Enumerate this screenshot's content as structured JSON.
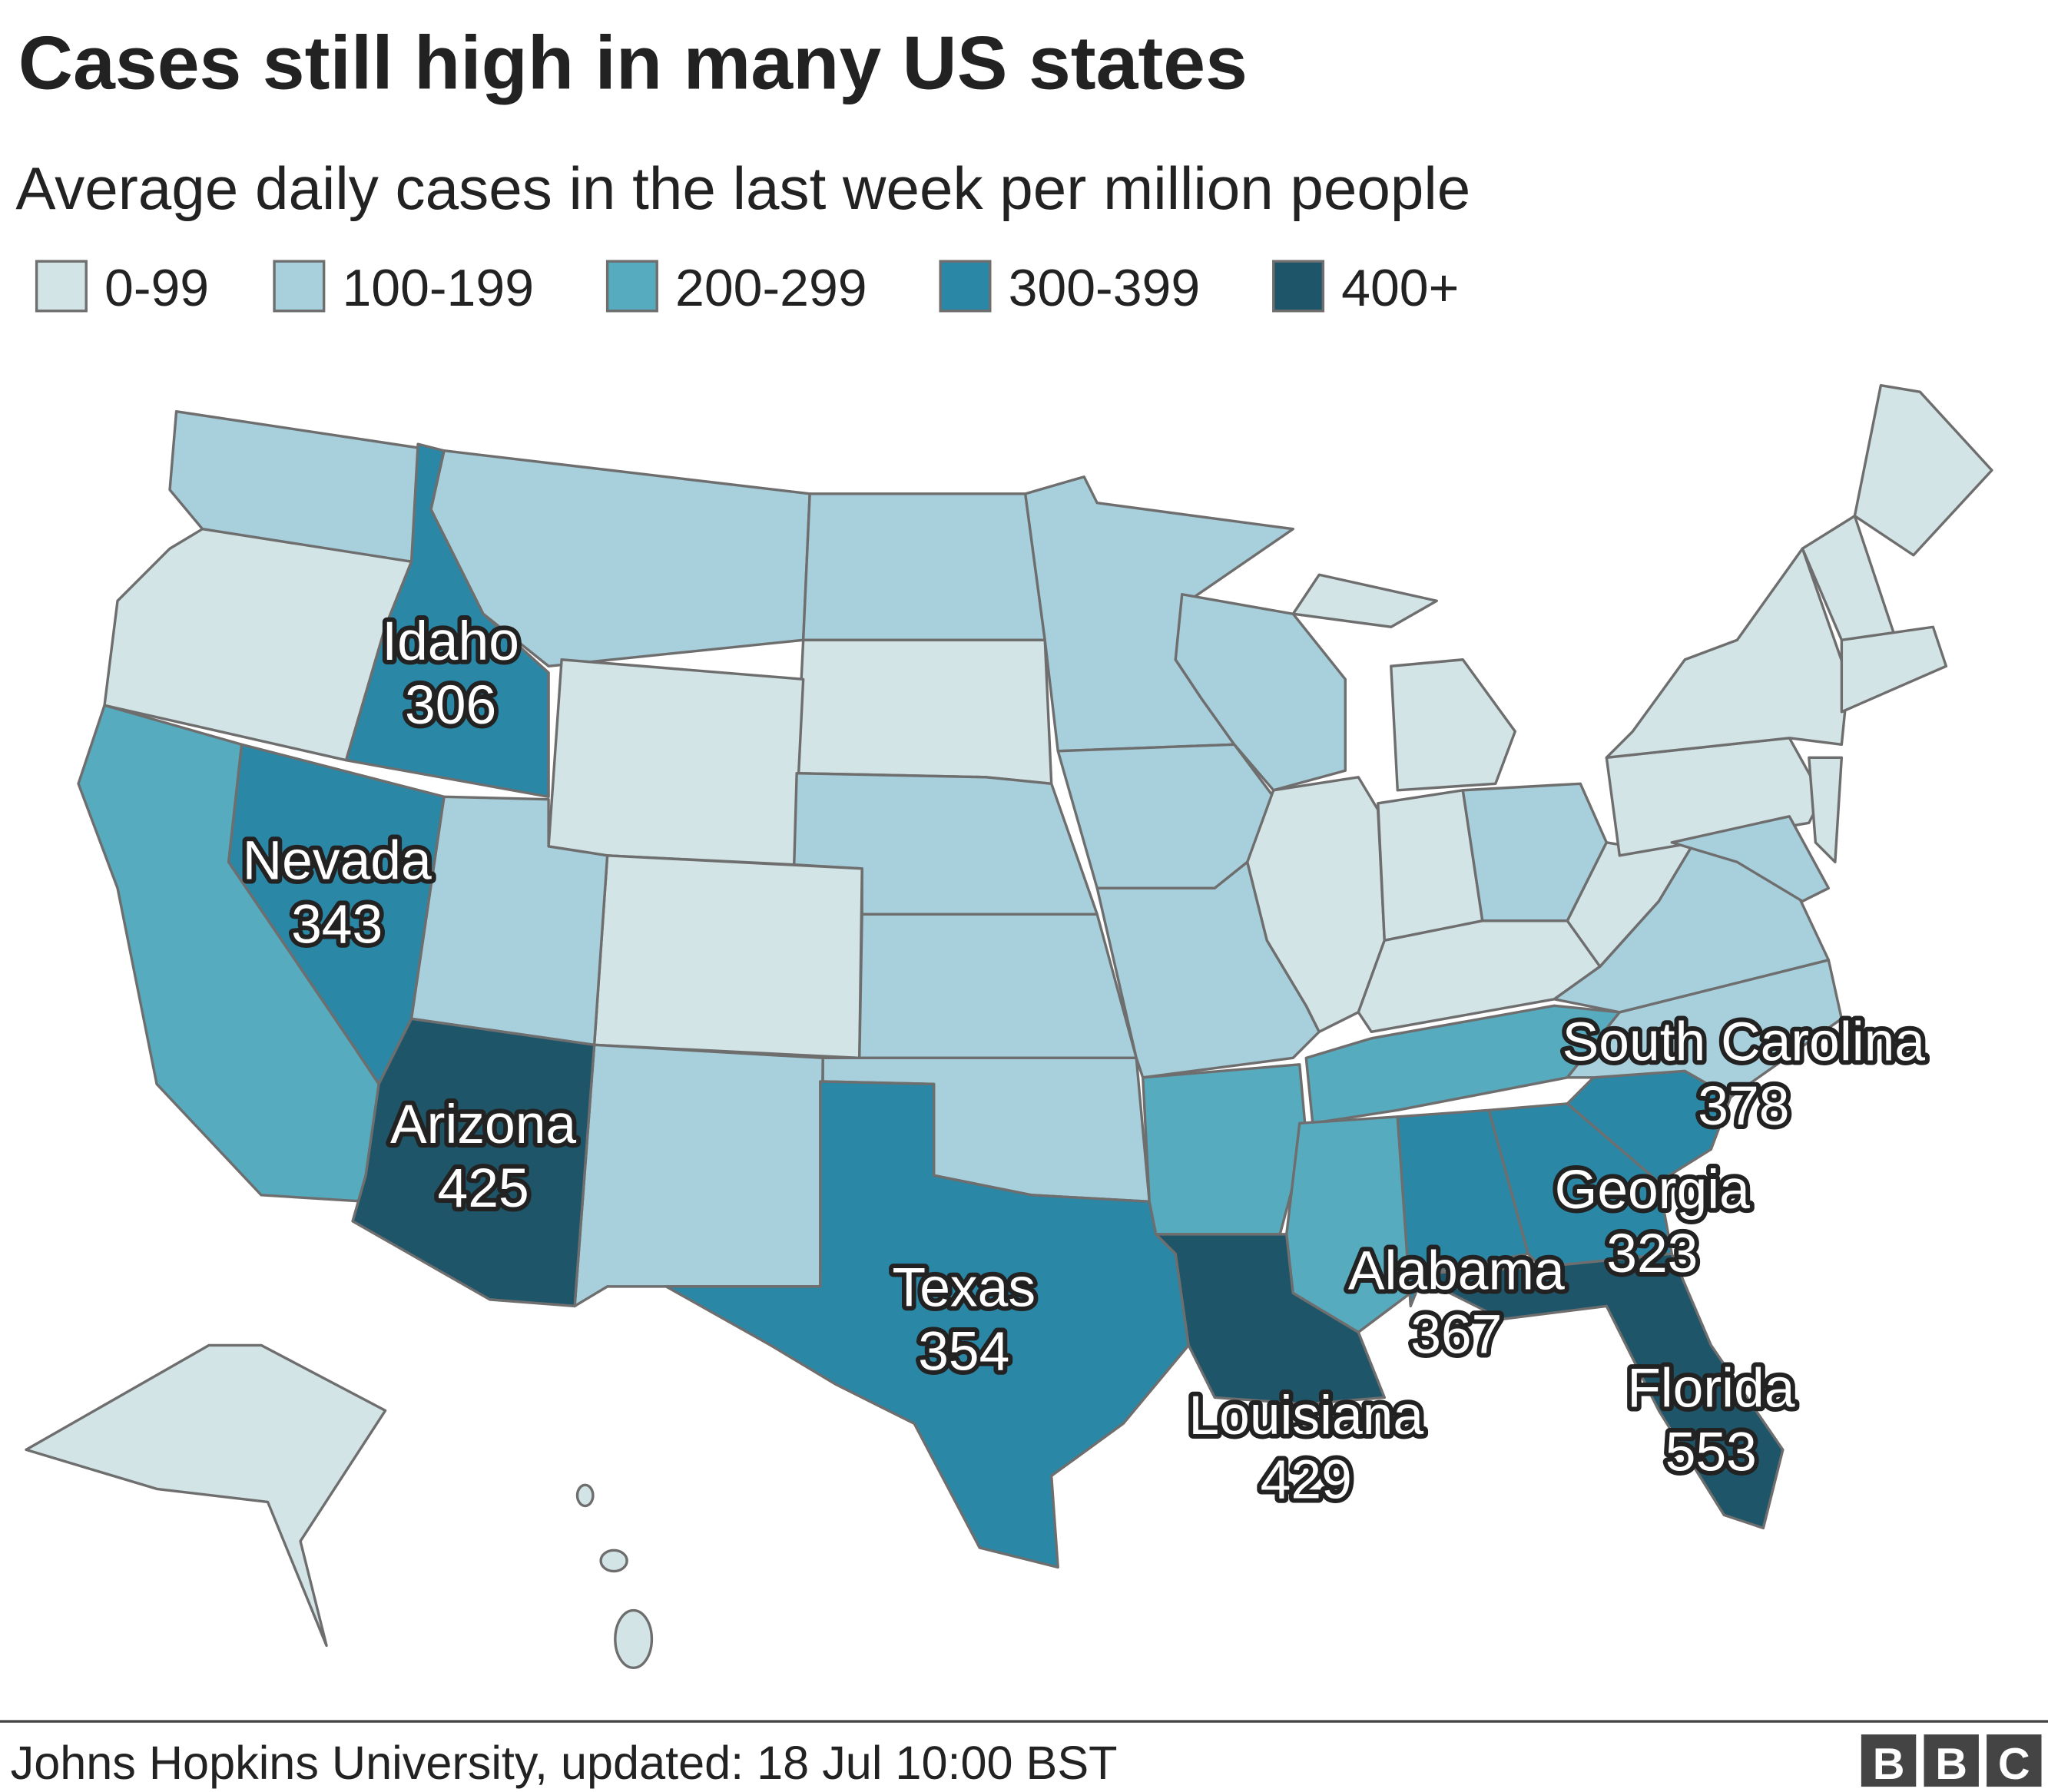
{
  "title": "Cases still high in many US states",
  "subtitle": "Average daily cases in the last week per million people",
  "legend": [
    {
      "label": "0-99",
      "min": 0,
      "color": "#d3e4e7"
    },
    {
      "label": "100-199",
      "min": 100,
      "color": "#a8cfdc"
    },
    {
      "label": "200-299",
      "min": 200,
      "color": "#57abbf"
    },
    {
      "label": "300-399",
      "min": 300,
      "color": "#2a87a6"
    },
    {
      "label": "400+",
      "min": 400,
      "color": "#1f5568"
    }
  ],
  "states": [
    {
      "name": "Idaho",
      "value": 306
    },
    {
      "name": "Nevada",
      "value": 343
    },
    {
      "name": "Arizona",
      "value": 425
    },
    {
      "name": "Texas",
      "value": 354
    },
    {
      "name": "Louisiana",
      "value": 429
    },
    {
      "name": "Alabama",
      "value": 367
    },
    {
      "name": "Georgia",
      "value": 323
    },
    {
      "name": "Florida",
      "value": 553
    },
    {
      "name": "South Carolina",
      "value": 378
    }
  ],
  "source": "Johns Hopkins University, updated: 18 Jul 10:00 BST",
  "logo": [
    "B",
    "B",
    "C"
  ]
}
